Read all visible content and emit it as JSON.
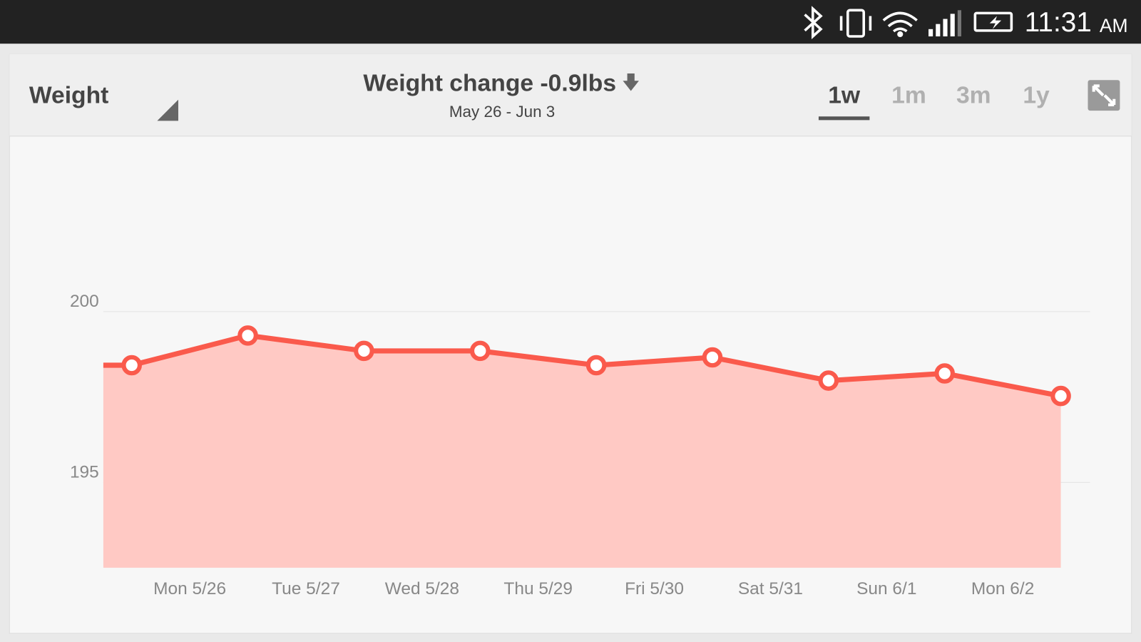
{
  "status_bar": {
    "time": "11:31",
    "meridiem": "AM"
  },
  "header": {
    "title": "Weight",
    "tabs": [
      "1w",
      "1m",
      "3m",
      "1y"
    ],
    "selected_tab": 0
  },
  "chart_data": {
    "type": "line",
    "title": "Weight change -0.9lbs",
    "subtitle": "May 26 - Jun 3",
    "categories": [
      "Mon 5/26",
      "Tue 5/27",
      "Wed 5/28",
      "Thu 5/29",
      "Fri 5/30",
      "Sat 5/31",
      "Sun 6/1",
      "Mon 6/2",
      null
    ],
    "values": [
      198.43,
      199.3,
      198.85,
      198.85,
      198.43,
      198.66,
      197.98,
      198.19,
      197.53
    ],
    "color": "#fa5a4c",
    "fill": "#ffc9c4",
    "ylim": [
      192.5,
      205
    ],
    "yticks": [
      195,
      200
    ],
    "grid": true
  }
}
